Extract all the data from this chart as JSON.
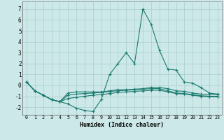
{
  "xlabel": "Humidex (Indice chaleur)",
  "bg_color": "#cce8e8",
  "grid_color": "#aacece",
  "line_color": "#1a7a6e",
  "xlim": [
    -0.5,
    23.5
  ],
  "ylim": [
    -2.7,
    7.7
  ],
  "yticks": [
    -2,
    -1,
    0,
    1,
    2,
    3,
    4,
    5,
    6,
    7
  ],
  "xticks": [
    0,
    1,
    2,
    3,
    4,
    5,
    6,
    7,
    8,
    9,
    10,
    11,
    12,
    13,
    14,
    15,
    16,
    17,
    18,
    19,
    20,
    21,
    22,
    23
  ],
  "lines": [
    {
      "x": [
        0,
        1,
        2,
        3,
        4,
        5,
        6,
        7,
        8,
        9,
        10,
        11,
        12,
        13,
        14,
        15,
        16,
        17,
        18,
        19,
        20,
        21,
        22,
        23
      ],
      "y": [
        0.3,
        -0.5,
        -0.9,
        -1.3,
        -1.5,
        -1.7,
        -2.1,
        -2.3,
        -2.4,
        -1.3,
        1.0,
        2.0,
        3.0,
        2.0,
        7.0,
        5.6,
        3.2,
        1.5,
        1.4,
        0.3,
        0.2,
        -0.2,
        -0.7,
        -0.8
      ]
    },
    {
      "x": [
        0,
        1,
        2,
        3,
        4,
        5,
        6,
        7,
        8,
        9,
        10,
        11,
        12,
        13,
        14,
        15,
        16,
        17,
        18,
        19,
        20,
        21,
        22,
        23
      ],
      "y": [
        0.3,
        -0.5,
        -0.9,
        -1.3,
        -1.5,
        -0.7,
        -0.6,
        -0.6,
        -0.6,
        -0.6,
        -0.5,
        -0.4,
        -0.4,
        -0.35,
        -0.3,
        -0.2,
        -0.2,
        -0.3,
        -0.5,
        -0.55,
        -0.7,
        -0.8,
        -0.85,
        -0.85
      ]
    },
    {
      "x": [
        0,
        1,
        2,
        3,
        4,
        5,
        6,
        7,
        8,
        9,
        10,
        11,
        12,
        13,
        14,
        15,
        16,
        17,
        18,
        19,
        20,
        21,
        22,
        23
      ],
      "y": [
        0.3,
        -0.5,
        -0.9,
        -1.3,
        -1.5,
        -0.9,
        -0.8,
        -0.75,
        -0.7,
        -0.65,
        -0.55,
        -0.5,
        -0.45,
        -0.4,
        -0.35,
        -0.3,
        -0.3,
        -0.5,
        -0.7,
        -0.75,
        -0.85,
        -0.95,
        -1.0,
        -1.0
      ]
    },
    {
      "x": [
        0,
        1,
        2,
        3,
        4,
        5,
        6,
        7,
        8,
        9,
        10,
        11,
        12,
        13,
        14,
        15,
        16,
        17,
        18,
        19,
        20,
        21,
        22,
        23
      ],
      "y": [
        0.3,
        -0.5,
        -0.9,
        -1.3,
        -1.5,
        -1.2,
        -1.1,
        -1.0,
        -0.9,
        -0.85,
        -0.75,
        -0.65,
        -0.6,
        -0.55,
        -0.5,
        -0.45,
        -0.45,
        -0.6,
        -0.75,
        -0.8,
        -0.9,
        -1.0,
        -1.05,
        -1.05
      ]
    }
  ]
}
